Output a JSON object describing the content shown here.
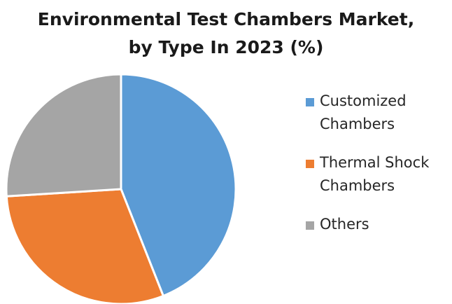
{
  "chart_data": {
    "type": "pie",
    "title_lines": [
      "Environmental Test Chambers Market,",
      "by Type In 2023 (%)"
    ],
    "categories": [
      "Customized Chambers",
      "Thermal Shock Chambers",
      "Others"
    ],
    "values": [
      44,
      30,
      26
    ],
    "legend_lines": [
      [
        "Customized",
        "Chambers"
      ],
      [
        "Thermal Shock",
        "Chambers"
      ],
      [
        "Others"
      ]
    ],
    "colors": [
      "#5b9bd5",
      "#ed7d31",
      "#a5a5a5"
    ],
    "legend_position": "right"
  }
}
